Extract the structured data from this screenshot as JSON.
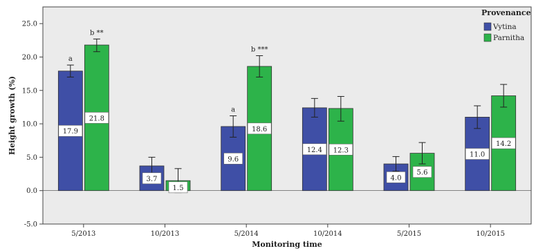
{
  "chart_data": {
    "type": "bar",
    "title": "",
    "xlabel": "Monitoring time",
    "ylabel": "Height growth (%)",
    "ylim": [
      -5.0,
      27.5
    ],
    "y_ticks": [
      "25.0",
      "20.0",
      "15.0",
      "10.0",
      "5.0",
      "0.0",
      "-5.0"
    ],
    "grid": false,
    "categories": [
      "5/2013",
      "10/2013",
      "5/2014",
      "10/2014",
      "5/2015",
      "10/2015"
    ],
    "legend": {
      "title": "Provenance",
      "placement": "top-right",
      "entries": [
        "Vytina",
        "Parnitha"
      ]
    },
    "series": [
      {
        "name": "Vytina",
        "color": "#3F4FA6",
        "values": [
          17.9,
          3.7,
          9.6,
          12.4,
          4.0,
          11.0
        ],
        "labels": [
          "17.9",
          "3.7",
          "9.6",
          "12.4",
          "4.0",
          "11.0"
        ],
        "err_low": [
          17.0,
          2.4,
          8.0,
          11.0,
          2.9,
          9.3
        ],
        "err_high": [
          18.8,
          5.0,
          11.2,
          13.8,
          5.1,
          12.7
        ],
        "annotations": [
          "a",
          "",
          "a",
          "",
          "",
          ""
        ]
      },
      {
        "name": "Parnitha",
        "color": "#2DB34A",
        "values": [
          21.8,
          1.5,
          18.6,
          12.3,
          5.6,
          14.2
        ],
        "labels": [
          "21.8",
          "1.5",
          "18.6",
          "12.3",
          "5.6",
          "14.2"
        ],
        "err_low": [
          20.8,
          -0.3,
          17.0,
          10.4,
          4.0,
          12.5
        ],
        "err_high": [
          22.7,
          3.3,
          20.2,
          14.1,
          7.2,
          15.9
        ],
        "annotations": [
          "b **",
          "",
          "b ***",
          "",
          "",
          ""
        ]
      }
    ]
  }
}
